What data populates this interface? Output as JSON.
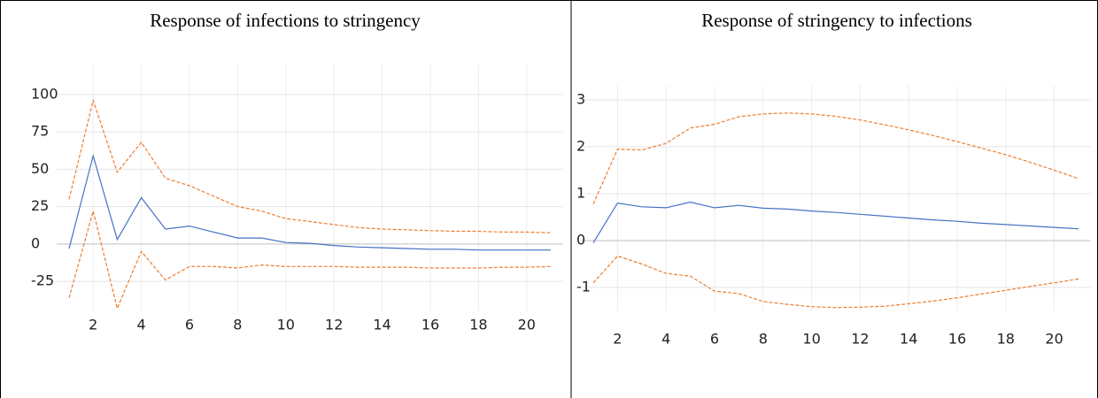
{
  "chart_data": [
    {
      "type": "line",
      "title": "Response of infections to stringency",
      "x": [
        1,
        2,
        3,
        4,
        5,
        6,
        7,
        8,
        9,
        10,
        11,
        12,
        13,
        14,
        15,
        16,
        17,
        18,
        19,
        20,
        21
      ],
      "series": [
        {
          "color": "#4472c4",
          "dashed": false,
          "values": [
            -3,
            59,
            3,
            31,
            10,
            12,
            8,
            4,
            4,
            1,
            0.5,
            -1,
            -2,
            -2.5,
            -3,
            -3.5,
            -3.5,
            -4,
            -4,
            -4,
            -4
          ]
        },
        {
          "color": "#ed7d31",
          "dashed": true,
          "values": [
            30,
            96,
            48,
            68,
            44,
            39,
            32,
            25,
            22,
            17,
            15,
            13,
            11,
            10,
            9.5,
            9,
            8.5,
            8.5,
            8,
            8,
            7.5
          ]
        },
        {
          "color": "#ed7d31",
          "dashed": true,
          "values": [
            -36,
            22,
            -43,
            -5,
            -24,
            -15,
            -15,
            -16,
            -14,
            -15,
            -15,
            -15,
            -15.5,
            -15.5,
            -15.5,
            -16,
            -16,
            -16,
            -15.5,
            -15.5,
            -15
          ]
        }
      ],
      "xlim": [
        0.5,
        21.5
      ],
      "xticks": [
        2,
        4,
        6,
        8,
        10,
        12,
        14,
        16,
        18,
        20
      ],
      "ylim": [
        -45,
        120
      ],
      "yticks": [
        -25,
        0,
        25,
        50,
        75,
        100
      ],
      "grid": true
    },
    {
      "type": "line",
      "title": "Response of stringency to infections",
      "x": [
        1,
        2,
        3,
        4,
        5,
        6,
        7,
        8,
        9,
        10,
        11,
        12,
        13,
        14,
        15,
        16,
        17,
        18,
        19,
        20,
        21
      ],
      "series": [
        {
          "color": "#4472c4",
          "dashed": false,
          "values": [
            -0.05,
            0.8,
            0.72,
            0.7,
            0.82,
            0.7,
            0.75,
            0.69,
            0.67,
            0.63,
            0.6,
            0.56,
            0.52,
            0.48,
            0.44,
            0.41,
            0.37,
            0.34,
            0.31,
            0.28,
            0.25
          ]
        },
        {
          "color": "#ed7d31",
          "dashed": true,
          "values": [
            0.78,
            1.95,
            1.93,
            2.07,
            2.4,
            2.48,
            2.64,
            2.7,
            2.72,
            2.7,
            2.65,
            2.57,
            2.47,
            2.36,
            2.24,
            2.11,
            1.97,
            1.83,
            1.67,
            1.5,
            1.32
          ]
        },
        {
          "color": "#ed7d31",
          "dashed": true,
          "values": [
            -0.9,
            -0.33,
            -0.5,
            -0.7,
            -0.76,
            -1.08,
            -1.13,
            -1.3,
            -1.36,
            -1.41,
            -1.43,
            -1.42,
            -1.4,
            -1.35,
            -1.29,
            -1.22,
            -1.14,
            -1.06,
            -0.98,
            -0.9,
            -0.82
          ]
        }
      ],
      "xlim": [
        0.5,
        21.5
      ],
      "xticks": [
        2,
        4,
        6,
        8,
        10,
        12,
        14,
        16,
        18,
        20
      ],
      "ylim": [
        -1.5,
        3.3
      ],
      "yticks": [
        -1,
        0,
        1,
        2,
        3
      ],
      "grid": true
    }
  ]
}
